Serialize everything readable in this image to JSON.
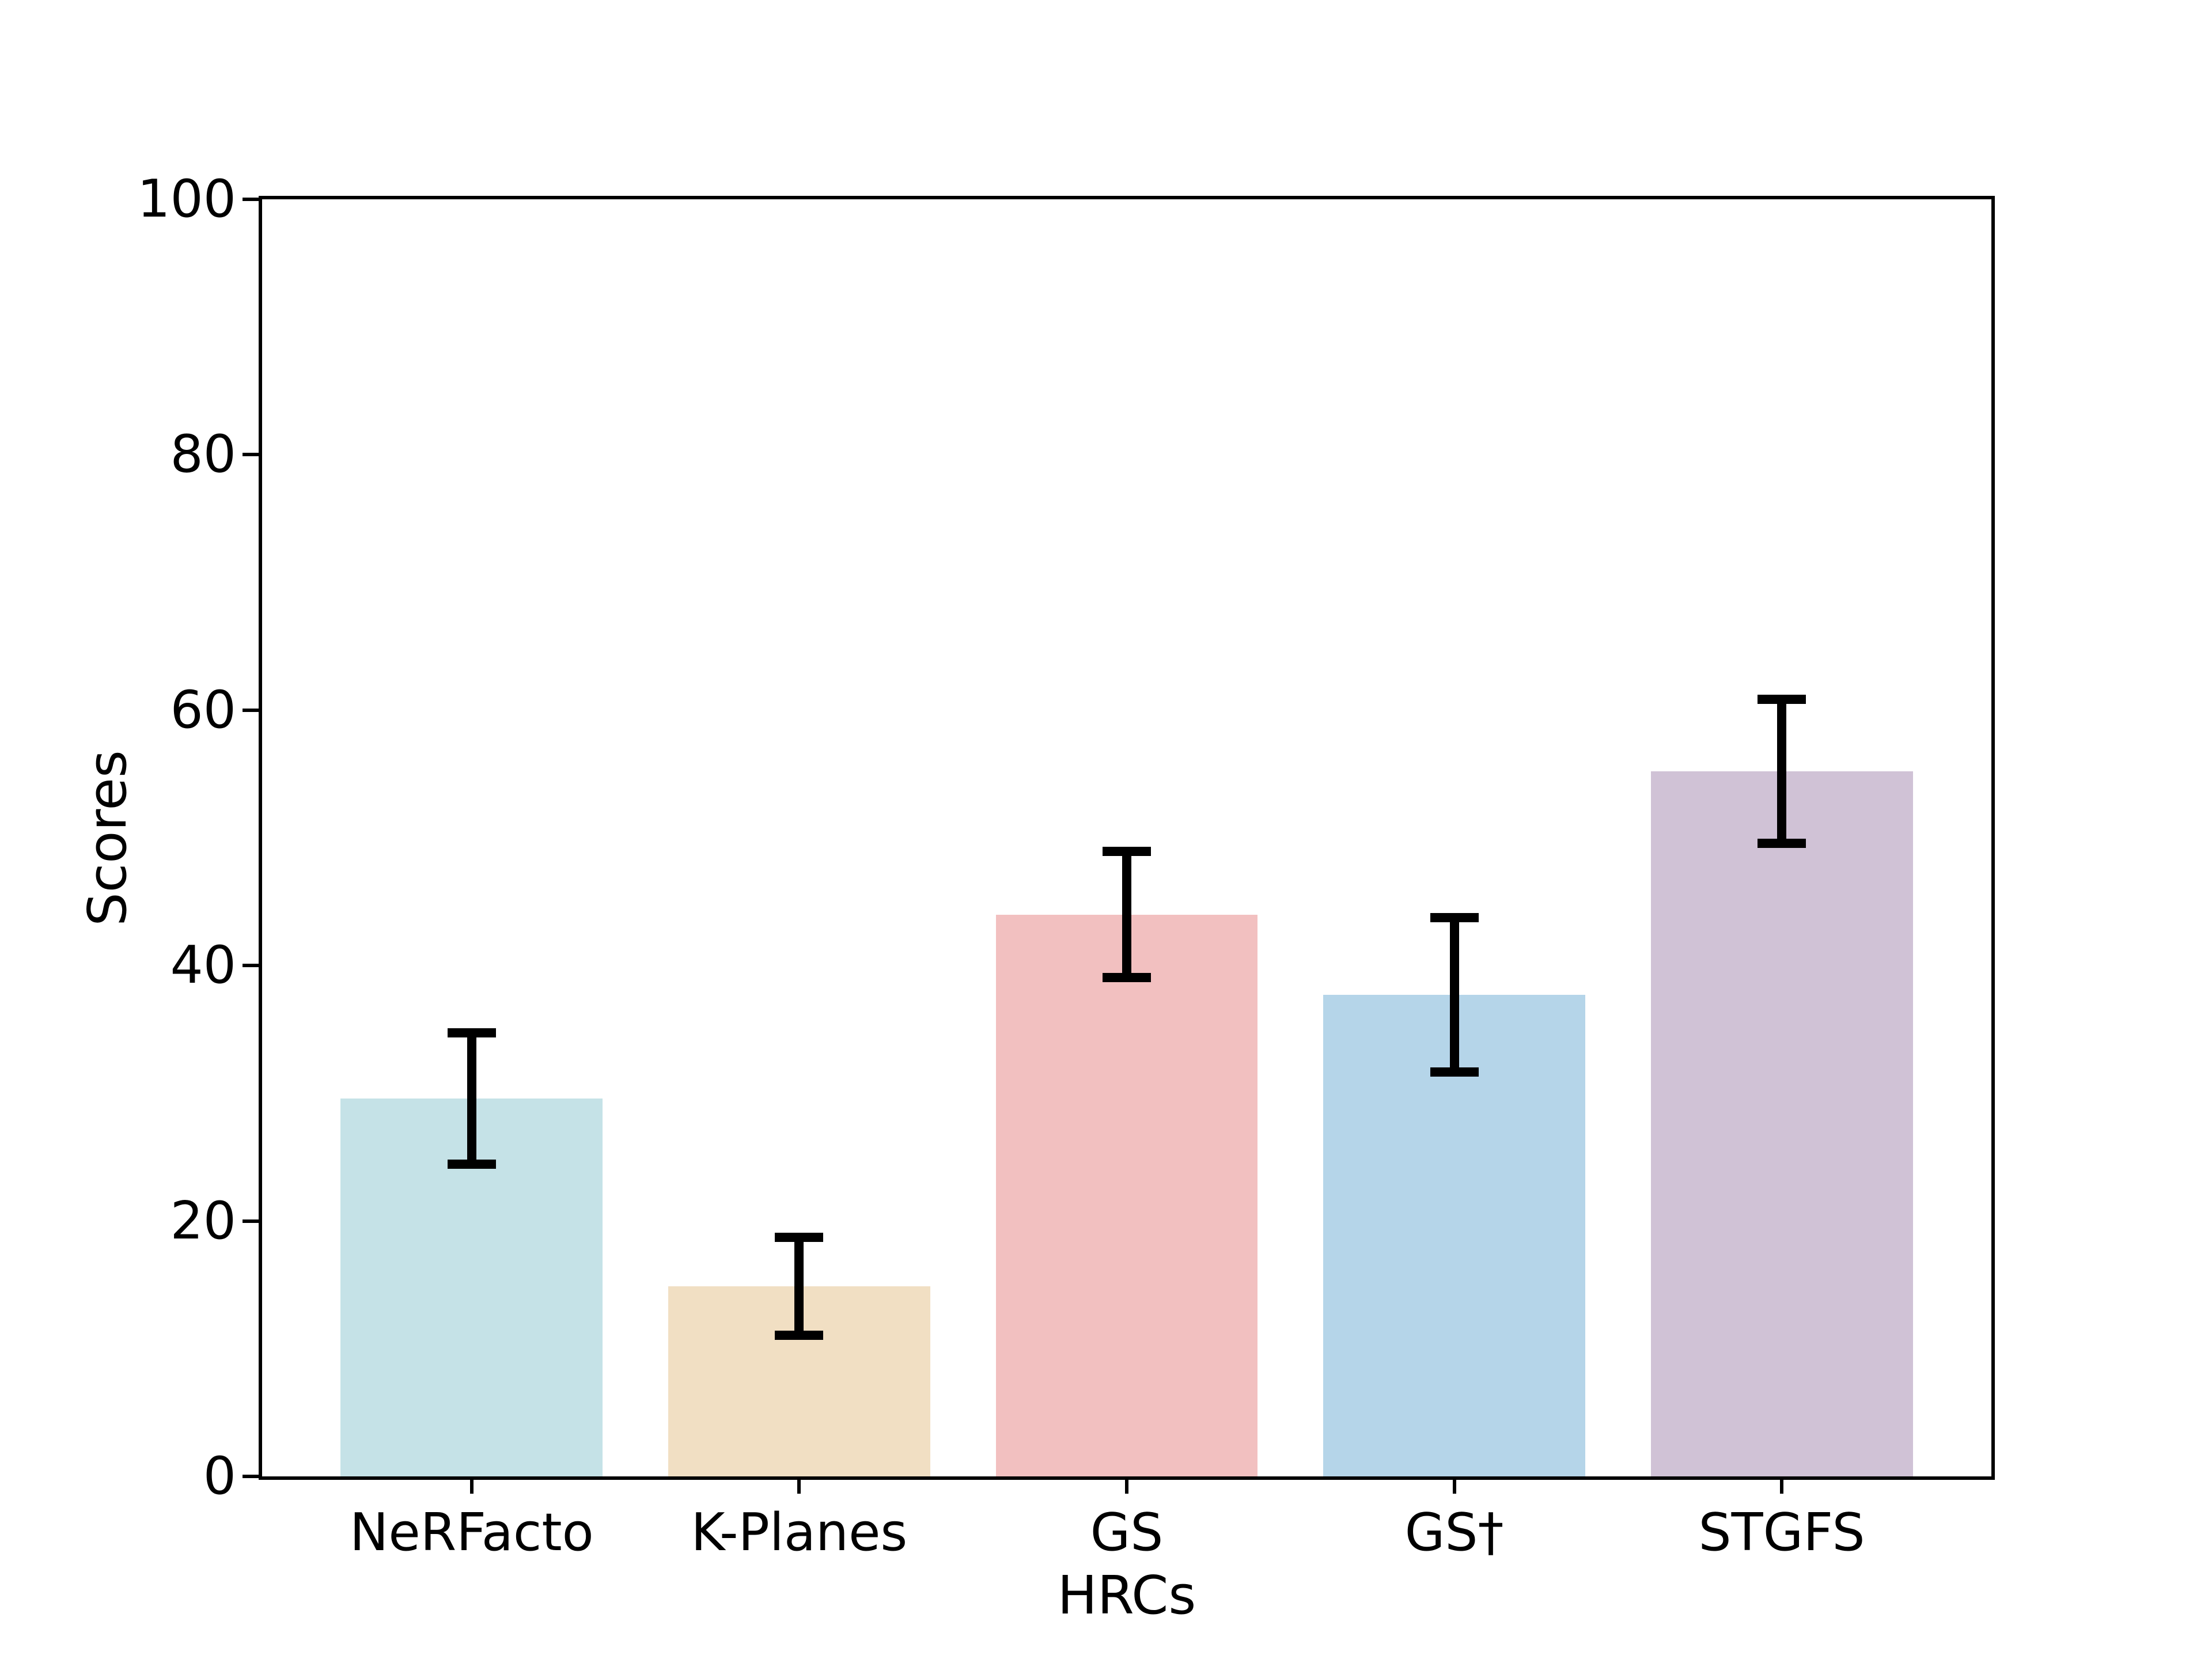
{
  "chart_data": {
    "type": "bar",
    "title": "",
    "xlabel": "HRCs",
    "ylabel": "Scores",
    "categories": [
      "NeRFacto",
      "K-Planes",
      "GS",
      "GS†",
      "STGFS"
    ],
    "values": [
      29.6,
      14.9,
      44.0,
      37.7,
      55.2
    ],
    "error_bars": [
      5.5,
      4.2,
      5.3,
      6.4,
      6.0
    ],
    "bar_colors": [
      "#c5e2e7",
      "#f1dfc3",
      "#f2c0c0",
      "#b5d5e9",
      "#d0c2d6"
    ],
    "error_bar_color": "#000000",
    "axis_color": "#000000",
    "text_color": "#000000",
    "background_color": "#ffffff",
    "ylim": [
      0,
      100
    ],
    "yticks": [
      0,
      20,
      40,
      60,
      80,
      100
    ],
    "grid": false,
    "legend": "none"
  }
}
